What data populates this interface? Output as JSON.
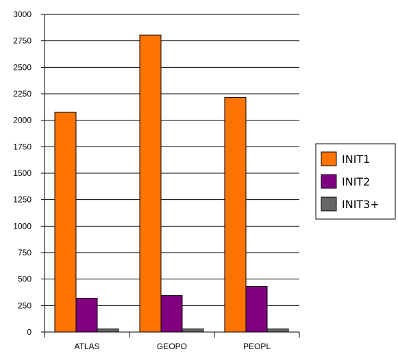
{
  "chart_data": {
    "type": "bar",
    "categories": [
      "ATLAS",
      "GEOPO",
      "PEOPL"
    ],
    "series": [
      {
        "name": "INIT1",
        "values": [
          2075,
          2805,
          2215
        ],
        "color": "#ff7300"
      },
      {
        "name": "INIT2",
        "values": [
          320,
          345,
          430
        ],
        "color": "#800080"
      },
      {
        "name": "INIT3+",
        "values": [
          30,
          30,
          30
        ],
        "color": "#666666"
      }
    ],
    "ylim": [
      0,
      3000
    ],
    "yticks": [
      0,
      250,
      500,
      750,
      1000,
      1250,
      1500,
      1750,
      2000,
      2250,
      2500,
      2750,
      3000
    ],
    "grid": true,
    "legend": "right"
  }
}
